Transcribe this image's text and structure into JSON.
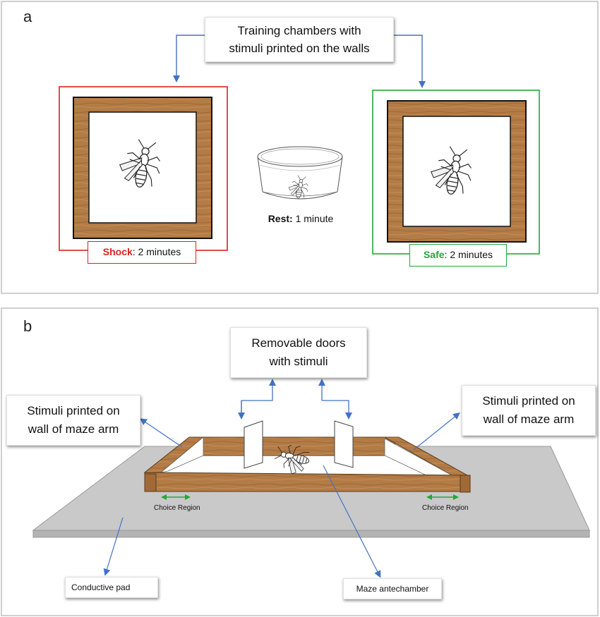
{
  "panel_a": {
    "letter": "a",
    "title_line1": "Training chambers with",
    "title_line2": "stimuli printed on the walls",
    "shock_bold": "Shock",
    "shock_rest": ": 2 minutes",
    "rest_bold": "Rest:",
    "rest_rest": " 1 minute",
    "safe_bold": "Safe",
    "safe_rest": ": 2 minutes"
  },
  "panel_b": {
    "letter": "b",
    "doors_line1": "Removable doors",
    "doors_line2": "with stimuli",
    "left_wall_line1": "Stimuli printed on",
    "left_wall_line2": "wall of maze arm",
    "right_wall_line1": "Stimuli printed on",
    "right_wall_line2": "wall of maze arm",
    "choice_left": "Choice Region",
    "choice_right": "Choice Region",
    "pad_label": "Conductive pad",
    "antechamber_label": "Maze antechamber"
  },
  "colors": {
    "shock": "#e02020",
    "safe": "#22a838",
    "arrow": "#4472c4",
    "choice_arrow": "#22a838",
    "wood": "#b07a45",
    "pad": "#cfcfcf"
  }
}
